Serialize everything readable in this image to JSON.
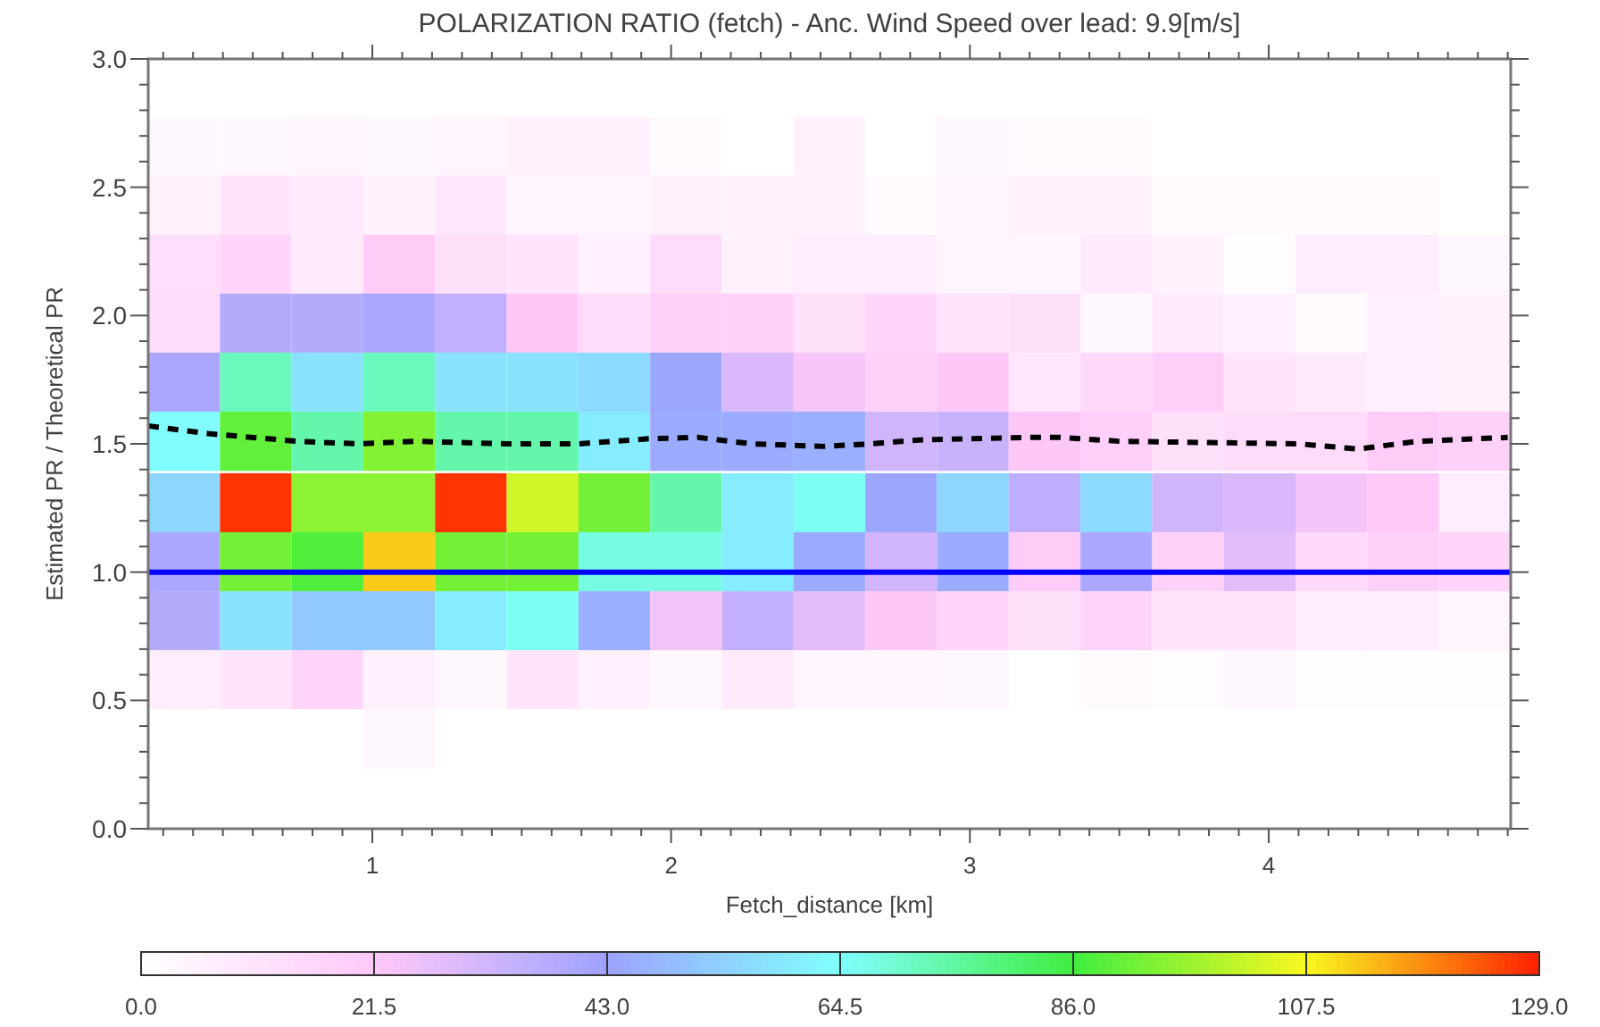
{
  "chart_data": {
    "type": "heatmap",
    "title": "POLARIZATION RATIO (fetch) - Anc. Wind Speed over lead:  9.9[m/s]",
    "xlabel": "Fetch_distance [km]",
    "ylabel": "Estimated PR / Theoretical PR",
    "x": [
      0.37,
      0.61,
      0.85,
      1.09,
      1.33,
      1.57,
      1.81,
      2.05,
      2.29,
      2.53,
      2.77,
      3.01,
      3.25,
      3.49,
      3.73,
      3.97,
      4.21,
      4.45,
      4.69
    ],
    "y": [
      2.66,
      2.43,
      2.2,
      1.97,
      1.74,
      1.51,
      1.27,
      1.04,
      0.81,
      0.58,
      0.35
    ],
    "cells": [
      [
        3,
        3,
        4,
        3,
        4,
        5,
        5,
        2,
        0,
        5,
        0,
        3,
        2,
        2,
        0,
        0,
        0,
        0,
        0
      ],
      [
        5,
        10,
        8,
        5,
        9,
        4,
        4,
        5,
        5,
        5,
        2,
        4,
        5,
        5,
        2,
        2,
        2,
        2,
        0
      ],
      [
        13,
        16,
        8,
        20,
        12,
        10,
        6,
        14,
        5,
        7,
        7,
        4,
        4,
        8,
        5,
        1,
        7,
        7,
        3
      ],
      [
        14,
        38,
        38,
        40,
        35,
        22,
        14,
        18,
        18,
        12,
        16,
        10,
        12,
        3,
        8,
        6,
        2,
        6,
        5
      ],
      [
        40,
        72,
        58,
        72,
        58,
        58,
        56,
        44,
        30,
        23,
        18,
        22,
        9,
        15,
        19,
        10,
        8,
        6,
        5
      ],
      [
        64,
        90,
        74,
        94,
        74,
        74,
        60,
        45,
        45,
        46,
        32,
        34,
        22,
        19,
        12,
        14,
        14,
        20,
        18
      ],
      [
        55,
        127,
        95,
        95,
        127,
        103,
        92,
        74,
        60,
        66,
        44,
        55,
        36,
        56,
        32,
        30,
        24,
        21,
        7
      ],
      [
        40,
        92,
        88,
        112,
        92,
        92,
        68,
        68,
        60,
        45,
        32,
        45,
        20,
        40,
        18,
        28,
        15,
        18,
        16
      ],
      [
        38,
        58,
        52,
        52,
        60,
        66,
        46,
        24,
        35,
        28,
        22,
        16,
        12,
        17,
        10,
        10,
        7,
        7,
        4
      ],
      [
        7,
        10,
        16,
        6,
        3,
        10,
        6,
        3,
        8,
        4,
        4,
        3,
        0,
        2,
        1,
        3,
        1,
        1,
        1
      ],
      [
        0,
        0,
        0,
        3,
        0,
        0,
        0,
        0,
        0,
        0,
        0,
        0,
        0,
        0,
        0,
        0,
        0,
        0,
        0
      ]
    ],
    "clim": [
      0,
      129
    ],
    "cticks": [
      {
        "value": 0,
        "label": "0.0"
      },
      {
        "value": 21.5,
        "label": "21.5"
      },
      {
        "value": 43,
        "label": "43.0"
      },
      {
        "value": 64.5,
        "label": "64.5"
      },
      {
        "value": 86,
        "label": "86.0"
      },
      {
        "value": 107.5,
        "label": "107.5"
      },
      {
        "value": 129,
        "label": "129.0"
      }
    ],
    "series": [
      {
        "type": "line",
        "color": "#000000",
        "line_style": "dashed",
        "x": [
          0.25,
          0.45,
          0.75,
          0.95,
          1.15,
          1.45,
          1.69,
          1.93,
          2.09,
          2.27,
          2.51,
          2.67,
          2.83,
          3.19,
          3.3,
          3.5,
          3.8,
          4.1,
          4.3,
          4.5,
          4.8
        ],
        "values": [
          1.57,
          1.54,
          1.51,
          1.5,
          1.51,
          1.5,
          1.5,
          1.52,
          1.525,
          1.5,
          1.49,
          1.5,
          1.515,
          1.525,
          1.525,
          1.51,
          1.505,
          1.5,
          1.48,
          1.51,
          1.525
        ]
      }
    ],
    "ref_lines": [
      {
        "axis": "y",
        "value": 1.0,
        "color": "#0000ff",
        "line_style": "solid"
      }
    ],
    "xlim": [
      0.25,
      4.81
    ],
    "xticks": [
      {
        "value": 0.3,
        "label": null
      },
      {
        "value": 0.4,
        "label": null
      },
      {
        "value": 0.5,
        "label": null
      },
      {
        "value": 0.6,
        "label": null
      },
      {
        "value": 0.7,
        "label": null
      },
      {
        "value": 0.8,
        "label": null
      },
      {
        "value": 0.9,
        "label": null
      },
      1,
      {
        "value": 1.1,
        "label": null
      },
      {
        "value": 1.2,
        "label": null
      },
      {
        "value": 1.3,
        "label": null
      },
      {
        "value": 1.4,
        "label": null
      },
      {
        "value": 1.5,
        "label": null
      },
      {
        "value": 1.6,
        "label": null
      },
      {
        "value": 1.7,
        "label": null
      },
      {
        "value": 1.8,
        "label": null
      },
      {
        "value": 1.9,
        "label": null
      },
      2,
      {
        "value": 2.1,
        "label": null
      },
      {
        "value": 2.2,
        "label": null
      },
      {
        "value": 2.3,
        "label": null
      },
      {
        "value": 2.4,
        "label": null
      },
      {
        "value": 2.5,
        "label": null
      },
      {
        "value": 2.6,
        "label": null
      },
      {
        "value": 2.7,
        "label": null
      },
      {
        "value": 2.8,
        "label": null
      },
      {
        "value": 2.9,
        "label": null
      },
      3,
      {
        "value": 3.1,
        "label": null
      },
      {
        "value": 3.2,
        "label": null
      },
      {
        "value": 3.3,
        "label": null
      },
      {
        "value": 3.4,
        "label": null
      },
      {
        "value": 3.5,
        "label": null
      },
      {
        "value": 3.6,
        "label": null
      },
      {
        "value": 3.7,
        "label": null
      },
      {
        "value": 3.8,
        "label": null
      },
      {
        "value": 3.9,
        "label": null
      },
      4,
      {
        "value": 4.1,
        "label": null
      },
      {
        "value": 4.2,
        "label": null
      },
      {
        "value": 4.3,
        "label": null
      },
      {
        "value": 4.4,
        "label": null
      },
      {
        "value": 4.5,
        "label": null
      },
      {
        "value": 4.6,
        "label": null
      },
      {
        "value": 4.7,
        "label": null
      },
      {
        "value": 4.8,
        "label": null
      }
    ],
    "ylim": [
      0,
      3
    ],
    "yticks": [
      {
        "value": 0,
        "label": "0.0"
      },
      {
        "value": 0.1,
        "label": null
      },
      {
        "value": 0.2,
        "label": null
      },
      {
        "value": 0.3,
        "label": null
      },
      {
        "value": 0.4,
        "label": null
      },
      0.5,
      {
        "value": 0.6,
        "label": null
      },
      {
        "value": 0.7,
        "label": null
      },
      {
        "value": 0.8,
        "label": null
      },
      {
        "value": 0.9,
        "label": null
      },
      {
        "value": 1,
        "label": "1.0"
      },
      {
        "value": 1.1,
        "label": null
      },
      {
        "value": 1.2,
        "label": null
      },
      {
        "value": 1.3,
        "label": null
      },
      {
        "value": 1.4,
        "label": null
      },
      1.5,
      {
        "value": 1.6,
        "label": null
      },
      {
        "value": 1.7,
        "label": null
      },
      {
        "value": 1.8,
        "label": null
      },
      {
        "value": 1.9,
        "label": null
      },
      {
        "value": 2,
        "label": "2.0"
      },
      {
        "value": 2.1,
        "label": null
      },
      {
        "value": 2.2,
        "label": null
      },
      {
        "value": 2.3,
        "label": null
      },
      {
        "value": 2.4,
        "label": null
      },
      2.5,
      {
        "value": 2.6,
        "label": null
      },
      {
        "value": 2.7,
        "label": null
      },
      {
        "value": 2.8,
        "label": null
      },
      {
        "value": 2.9,
        "label": null
      },
      {
        "value": 3,
        "label": "3.0"
      }
    ],
    "grid": false
  }
}
